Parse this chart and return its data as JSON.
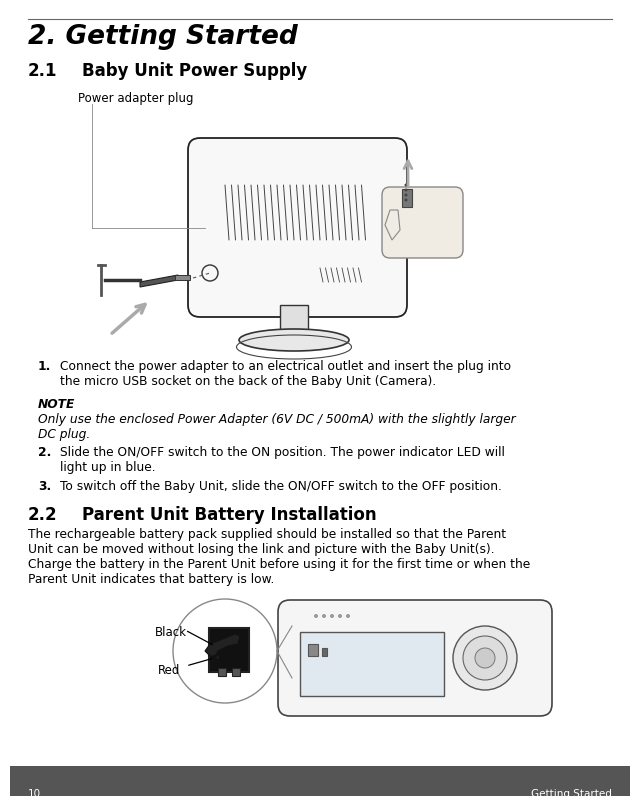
{
  "page_number": "10",
  "footer_text": "Getting Started",
  "footer_bg": "#555555",
  "footer_text_color": "#ffffff",
  "bg_color": "#ffffff",
  "top_line_color": "#888888",
  "title": "2. Getting Started",
  "title_fontsize": 19,
  "section21_label": "2.1",
  "section21_title": "Baby Unit Power Supply",
  "section_fontsize": 12,
  "section22_label": "2.2",
  "section22_title": "Parent Unit Battery Installation",
  "diagram_label": "Power adapter plug",
  "body_fontsize": 8.8,
  "note_label": "NOTE",
  "note_text": "Only use the enclosed Power Adapter (6V DC / 500mA) with the slightly larger\nDC plug.",
  "step1_num": "1.",
  "step1_text": "Connect the power adapter to an electrical outlet and insert the plug into\nthe micro USB socket on the back of the Baby Unit (Camera).",
  "step2_num": "2.",
  "step2_text": "Slide the ON/OFF switch to the ON position. The power indicator LED will\nlight up in blue.",
  "step3_num": "3.",
  "step3_text": "To switch off the Baby Unit, slide the ON/OFF switch to the OFF position.",
  "section22_body": "The rechargeable battery pack supplied should be installed so that the Parent\nUnit can be moved without losing the link and picture with the Baby Unit(s).\nCharge the battery in the Parent Unit before using it for the first time or when the\nParent Unit indicates that battery is low.",
  "black_label": "Black",
  "red_label": "Red",
  "gray_arrow": "#aaaaaa",
  "line_color": "#333333"
}
